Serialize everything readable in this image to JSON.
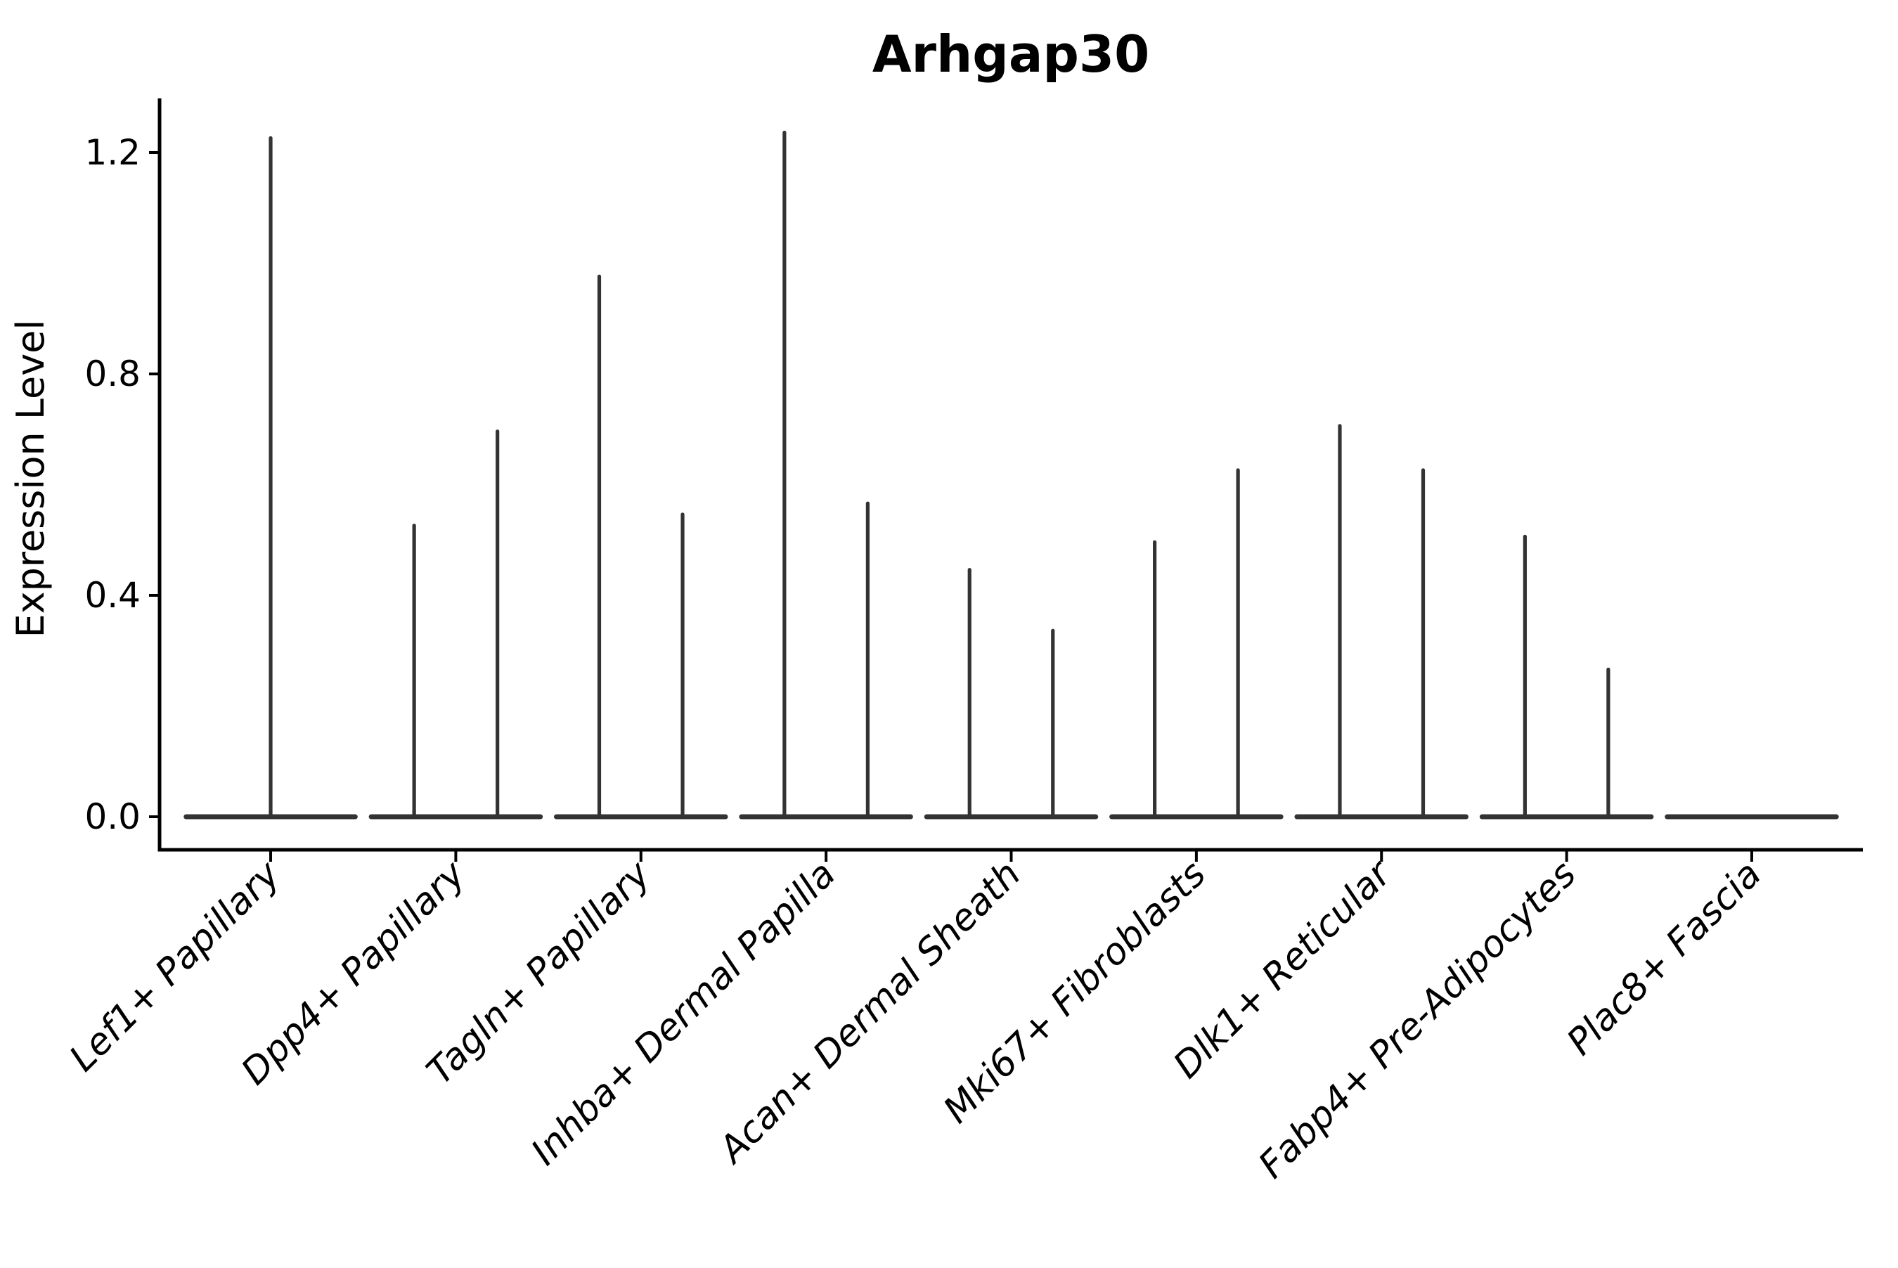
{
  "chart_data": {
    "type": "violin",
    "title": "Arhgap30",
    "ylabel": "Expression Level",
    "xlabel": "",
    "grid": false,
    "legend": null,
    "ylim": [
      -0.06,
      1.3
    ],
    "yticks": [
      {
        "value": 0.0,
        "label": "0.0"
      },
      {
        "value": 0.4,
        "label": "0.4"
      },
      {
        "value": 0.8,
        "label": "0.8"
      },
      {
        "value": 1.2,
        "label": "1.2"
      }
    ],
    "categories": [
      "Lef1+ Papillary",
      "Dpp4+ Papillary",
      "Tagln+ Papillary",
      "Inhba+ Dermal Papilla",
      "Acan+ Dermal Sheath",
      "Mki67+ Fibroblasts",
      "Dlk1+ Reticular",
      "Fabp4+ Pre-Adipocytes",
      "Plac8+ Fascia"
    ],
    "violins": [
      {
        "category": "Lef1+ Papillary",
        "body_width": 0.94,
        "spikes": [
          {
            "offset": 0.0,
            "max": 1.23
          }
        ]
      },
      {
        "category": "Dpp4+ Papillary",
        "body_width": 0.94,
        "spikes": [
          {
            "offset": -0.225,
            "max": 0.53
          },
          {
            "offset": 0.225,
            "max": 0.7
          }
        ]
      },
      {
        "category": "Tagln+ Papillary",
        "body_width": 0.94,
        "spikes": [
          {
            "offset": -0.225,
            "max": 0.98
          },
          {
            "offset": 0.225,
            "max": 0.55
          }
        ]
      },
      {
        "category": "Inhba+ Dermal Papilla",
        "body_width": 0.94,
        "spikes": [
          {
            "offset": -0.225,
            "max": 1.24
          },
          {
            "offset": 0.225,
            "max": 0.57
          }
        ]
      },
      {
        "category": "Acan+ Dermal Sheath",
        "body_width": 0.94,
        "spikes": [
          {
            "offset": -0.225,
            "max": 0.45
          },
          {
            "offset": 0.225,
            "max": 0.34
          }
        ]
      },
      {
        "category": "Mki67+ Fibroblasts",
        "body_width": 0.94,
        "spikes": [
          {
            "offset": -0.225,
            "max": 0.5
          },
          {
            "offset": 0.225,
            "max": 0.63
          }
        ]
      },
      {
        "category": "Dlk1+ Reticular",
        "body_width": 0.94,
        "spikes": [
          {
            "offset": -0.225,
            "max": 0.71
          },
          {
            "offset": 0.225,
            "max": 0.63
          }
        ]
      },
      {
        "category": "Fabp4+ Pre-Adipocytes",
        "body_width": 0.94,
        "spikes": [
          {
            "offset": -0.225,
            "max": 0.51
          },
          {
            "offset": 0.225,
            "max": 0.27
          }
        ]
      },
      {
        "category": "Plac8+ Fascia",
        "body_width": 0.94,
        "spikes": []
      }
    ],
    "colors": {
      "violin": "#333333",
      "axis": "#000000",
      "text": "#000000",
      "background": "#ffffff"
    }
  }
}
